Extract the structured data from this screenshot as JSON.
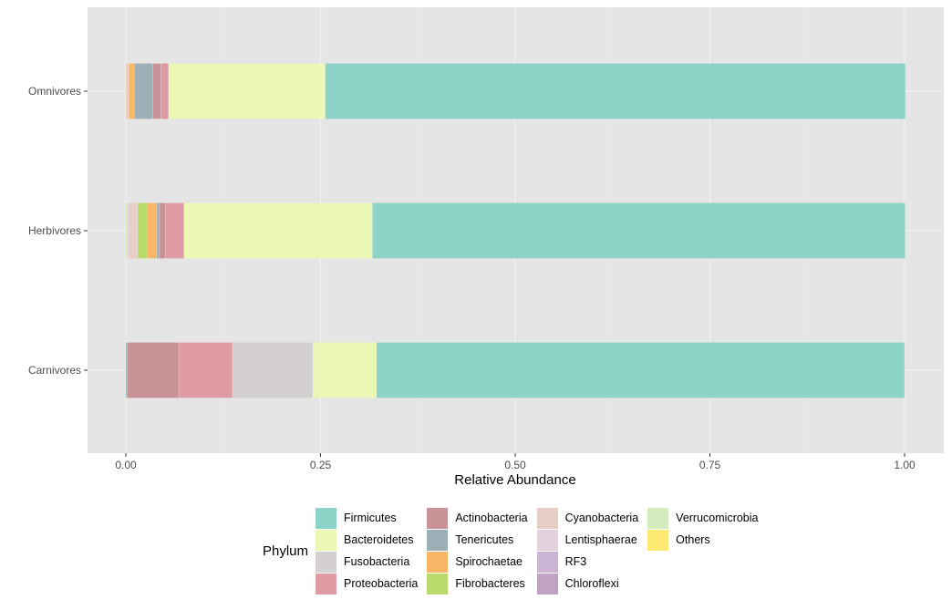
{
  "chart_data": {
    "type": "bar",
    "orientation": "horizontal",
    "stacked": true,
    "xlabel": "Relative Abundance",
    "ylabel": "",
    "xlim": [
      0,
      1
    ],
    "xticks": [
      "0.00",
      "0.25",
      "0.50",
      "0.75",
      "1.00"
    ],
    "categories": [
      "Carnivores",
      "Herbivores",
      "Omnivores"
    ],
    "legend_title": "Phylum",
    "legend_position": "bottom",
    "grid": true,
    "series": [
      {
        "name": "Firmicutes",
        "color": "#8DD3C7",
        "values": [
          0.678,
          0.684,
          0.745
        ]
      },
      {
        "name": "Bacteroidetes",
        "color": "#EBF7B5",
        "values": [
          0.082,
          0.242,
          0.201
        ]
      },
      {
        "name": "Fusobacteria",
        "color": "#D4D0D0",
        "values": [
          0.103,
          0,
          0
        ]
      },
      {
        "name": "Proteobacteria",
        "color": "#DE9BA3",
        "values": [
          0.069,
          0.024,
          0.01
        ]
      },
      {
        "name": "Actinobacteria",
        "color": "#C99296",
        "values": [
          0.066,
          0.008,
          0.01
        ]
      },
      {
        "name": "Tenericutes",
        "color": "#9AAFB6",
        "values": [
          0.002,
          0.003,
          0.024
        ]
      },
      {
        "name": "Spirochaetae",
        "color": "#F7B766",
        "values": [
          0,
          0.012,
          0.007
        ]
      },
      {
        "name": "Fibrobacteres",
        "color": "#B9DB6C",
        "values": [
          0,
          0.0125,
          0
        ]
      },
      {
        "name": "Cyanobacteria",
        "color": "#E8CFC6",
        "values": [
          0,
          0.0105,
          0.004
        ]
      },
      {
        "name": "Lentisphaerae",
        "color": "#E3D2DB",
        "values": [
          0,
          0.0027,
          0
        ]
      },
      {
        "name": "RF3",
        "color": "#CBB3D3",
        "values": [
          0,
          0,
          0
        ]
      },
      {
        "name": "Chloroflexi",
        "color": "#C1A2C2",
        "values": [
          0,
          0,
          0
        ]
      },
      {
        "name": "Verrucomicrobia",
        "color": "#D3EBBE",
        "values": [
          0,
          0.002,
          0
        ]
      },
      {
        "name": "Others",
        "color": "#FEE973",
        "values": [
          0,
          0,
          0
        ]
      }
    ]
  }
}
